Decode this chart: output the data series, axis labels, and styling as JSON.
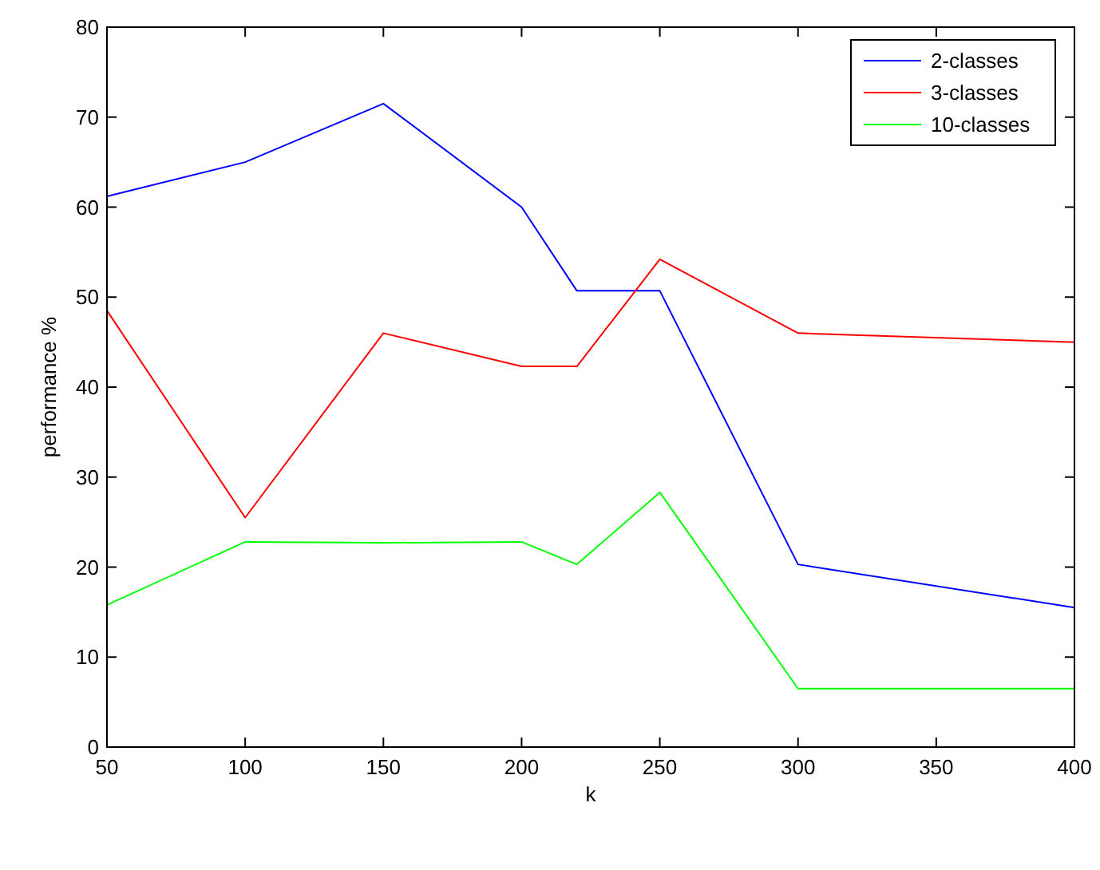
{
  "chart_data": {
    "type": "line",
    "xlabel": "k",
    "ylabel": "performance %",
    "x": [
      50,
      100,
      150,
      200,
      220,
      250,
      300,
      400
    ],
    "series": [
      {
        "name": "2-classes",
        "color": "#0000ff",
        "values": [
          61.2,
          65,
          71.5,
          60,
          50.7,
          50.7,
          20.3,
          15.5
        ]
      },
      {
        "name": "3-classes",
        "color": "#ff0000",
        "values": [
          48.5,
          25.5,
          46,
          42.3,
          42.3,
          54.2,
          46,
          45
        ]
      },
      {
        "name": "10-classes",
        "color": "#00ff00",
        "values": [
          15.8,
          22.8,
          22.7,
          22.8,
          20.3,
          28.3,
          6.5,
          6.5
        ]
      }
    ],
    "xlim": [
      50,
      400
    ],
    "xticks": [
      50,
      100,
      150,
      200,
      250,
      300,
      350,
      400
    ],
    "ylim": [
      0,
      80
    ],
    "yticks": [
      0,
      10,
      20,
      30,
      40,
      50,
      60,
      70,
      80
    ],
    "grid": false,
    "legend": "top right",
    "marker": "none",
    "line_style": "solid"
  }
}
